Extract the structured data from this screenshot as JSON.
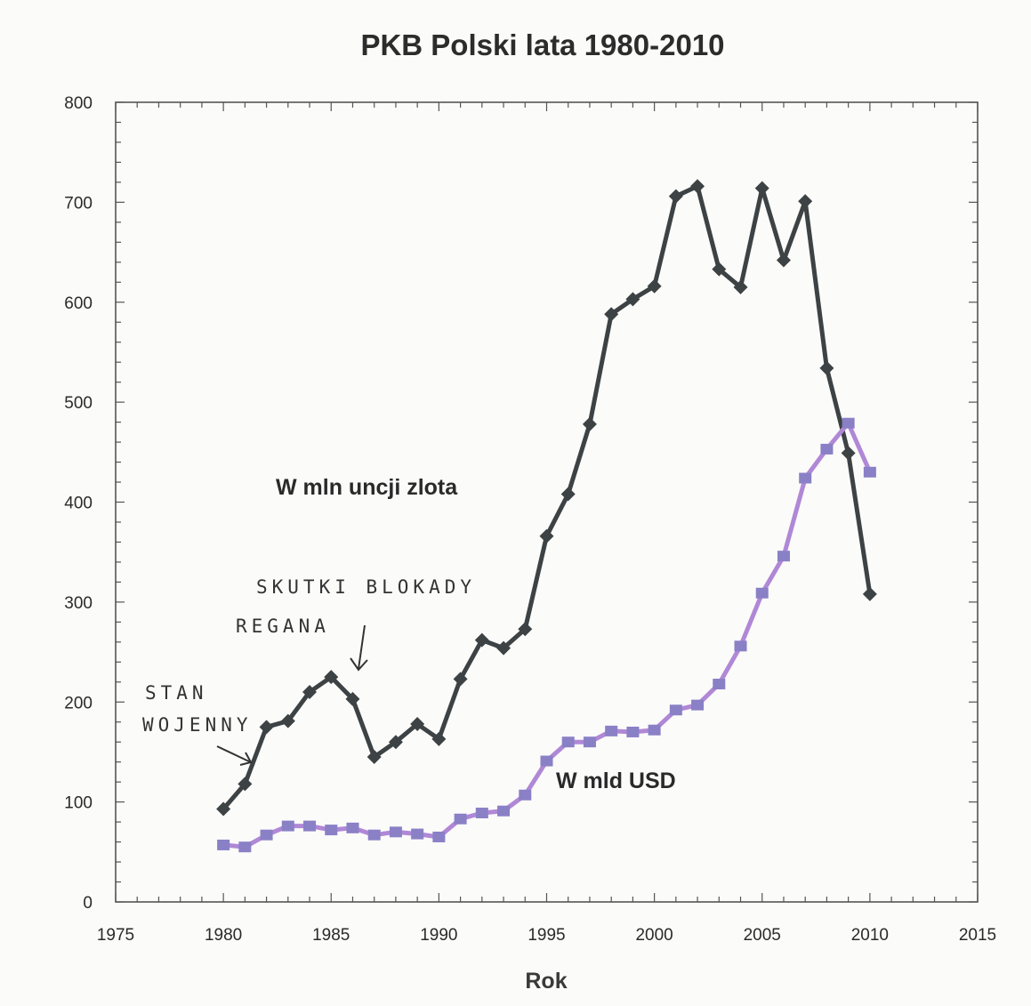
{
  "chart_data": {
    "type": "line",
    "title": "PKB  Polski lata 1980-2010",
    "xlabel": "Rok",
    "ylabel": "",
    "xlim": [
      1975,
      2015
    ],
    "ylim": [
      0,
      800
    ],
    "xticks": [
      1975,
      1980,
      1985,
      1990,
      1995,
      2000,
      2005,
      2010,
      2015
    ],
    "yticks": [
      0,
      100,
      200,
      300,
      400,
      500,
      600,
      700,
      800
    ],
    "grid": false,
    "x": [
      1980,
      1981,
      1982,
      1983,
      1984,
      1985,
      1986,
      1987,
      1988,
      1989,
      1990,
      1991,
      1992,
      1993,
      1994,
      1995,
      1996,
      1997,
      1998,
      1999,
      2000,
      2001,
      2002,
      2003,
      2004,
      2005,
      2006,
      2007,
      2008,
      2009,
      2010
    ],
    "series": [
      {
        "name": "W  mln uncji zlota",
        "color": "#3d4244",
        "marker": "diamond",
        "values": [
          93,
          118,
          175,
          181,
          210,
          225,
          203,
          145,
          160,
          178,
          163,
          223,
          262,
          254,
          273,
          366,
          408,
          478,
          588,
          603,
          616,
          706,
          716,
          633,
          615,
          714,
          642,
          701,
          534,
          449,
          308
        ]
      },
      {
        "name": "W mld USD",
        "color": "#b088d6",
        "marker_color": "#8a80c6",
        "marker": "square",
        "values": [
          57,
          55,
          67,
          76,
          76,
          72,
          74,
          67,
          70,
          68,
          65,
          83,
          89,
          91,
          107,
          141,
          160,
          160,
          171,
          170,
          172,
          192,
          197,
          218,
          256,
          309,
          346,
          424,
          453,
          479,
          430
        ]
      }
    ],
    "annotations": [
      {
        "text": "SKUTKI BLOKADY"
      },
      {
        "text": "REGANA"
      },
      {
        "text": "STAN"
      },
      {
        "text": "WOJENNY"
      }
    ]
  }
}
